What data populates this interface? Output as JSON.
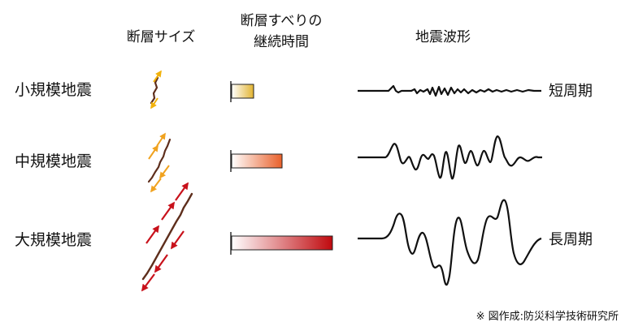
{
  "headers": {
    "fault_size": "断層サイズ",
    "slip_duration_line1": "断層すべりの",
    "slip_duration_line2": "継続時間",
    "waveform": "地震波形"
  },
  "rows": [
    {
      "label": "小規模地震",
      "duration_fraction": 0.22,
      "color": "#e2b431",
      "wave_label": "短周期"
    },
    {
      "label": "中規模地震",
      "duration_fraction": 0.5,
      "color": "#e9602a",
      "wave_label": ""
    },
    {
      "label": "大規模地震",
      "duration_fraction": 1.0,
      "color": "#c0090e",
      "wave_label": "長周期"
    }
  ],
  "fault_colors": {
    "fault_line": "#5e2e1c",
    "arrow_small": "#f2b20c",
    "arrow_medium": "#f0a21f",
    "arrow_large": "#c8111b"
  },
  "credit": "※ 図作成:防災科学技術研究所"
}
